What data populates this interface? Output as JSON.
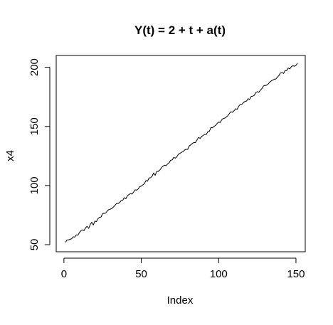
{
  "chart_data": {
    "type": "line",
    "title": "Y(t) = 2 + t + a(t)",
    "xlabel": "Index",
    "ylabel": "x4",
    "xlim": [
      -5,
      156
    ],
    "ylim": [
      44,
      210
    ],
    "x_ticks": [
      0,
      50,
      100,
      150
    ],
    "y_ticks": [
      50,
      100,
      150,
      200
    ],
    "x_tick_labels": [
      "0",
      "50",
      "100",
      "150"
    ],
    "y_tick_labels": [
      "50",
      "100",
      "150",
      "200"
    ],
    "grid": false,
    "legend": "none",
    "line_color": "#000000",
    "series": [
      {
        "x": [
          1,
          2,
          3,
          4,
          5,
          6,
          7,
          8,
          9,
          10,
          11,
          12,
          13,
          14,
          15,
          16,
          17,
          18,
          19,
          20,
          21,
          22,
          23,
          24,
          25,
          26,
          27,
          28,
          29,
          30,
          31,
          32,
          33,
          34,
          35,
          36,
          37,
          38,
          39,
          40,
          41,
          42,
          43,
          44,
          45,
          46,
          47,
          48,
          49,
          50,
          51,
          52,
          53,
          54,
          55,
          56,
          57,
          58,
          59,
          60,
          61,
          62,
          63,
          64,
          65,
          66,
          67,
          68,
          69,
          70,
          71,
          72,
          73,
          74,
          75,
          76,
          77,
          78,
          79,
          80,
          81,
          82,
          83,
          84,
          85,
          86,
          87,
          88,
          89,
          90,
          91,
          92,
          93,
          94,
          95,
          96,
          97,
          98,
          99,
          100,
          101,
          102,
          103,
          104,
          105,
          106,
          107,
          108,
          109,
          110,
          111,
          112,
          113,
          114,
          115,
          116,
          117,
          118,
          119,
          120,
          121,
          122,
          123,
          124,
          125,
          126,
          127,
          128,
          129,
          130,
          131,
          132,
          133,
          134,
          135,
          136,
          137,
          138,
          139,
          140,
          141,
          142,
          143,
          144,
          145,
          146,
          147,
          148,
          149,
          150,
          151
        ],
        "values": [
          52.0,
          54.0,
          54.0,
          54.6,
          55.0,
          56.6,
          56.4,
          58.3,
          58.0,
          60.2,
          61.8,
          62.5,
          61.9,
          64.3,
          65.5,
          63.7,
          67.0,
          69.0,
          66.6,
          69.9,
          69.5,
          72.0,
          73.1,
          73.4,
          76.3,
          76.5,
          76.7,
          78.5,
          79.6,
          80.0,
          80.6,
          81.9,
          83.3,
          84.8,
          84.8,
          85.6,
          87.3,
          87.5,
          89.8,
          88.8,
          91.2,
          92.4,
          93.2,
          92.8,
          94.5,
          96.4,
          96.1,
          97.1,
          99.1,
          99.5,
          100.6,
          101.5,
          104.3,
          103.6,
          106.4,
          106.6,
          107.9,
          110.6,
          108.6,
          112.0,
          112.0,
          113.1,
          115.0,
          116.3,
          117.2,
          116.8,
          118.2,
          119.3,
          121.4,
          121.7,
          123.8,
          123.2,
          124.4,
          126.5,
          127.2,
          128.1,
          128.8,
          130.0,
          130.6,
          130.6,
          133.5,
          134.4,
          135.6,
          136.4,
          136.3,
          138.6,
          140.7,
          139.9,
          141.4,
          142.4,
          143.3,
          143.1,
          145.5,
          145.8,
          149.0,
          148.8,
          150.0,
          150.8,
          152.4,
          153.7,
          153.3,
          155.6,
          156.8,
          157.0,
          158.0,
          159.1,
          161.0,
          162.4,
          161.9,
          163.3,
          164.9,
          164.5,
          167.1,
          168.6,
          168.7,
          170.0,
          171.2,
          171.4,
          173.4,
          172.8,
          175.3,
          175.6,
          176.2,
          178.6,
          179.4,
          178.9,
          180.7,
          182.0,
          184.2,
          184.5,
          184.9,
          185.8,
          187.4,
          188.5,
          189.2,
          189.9,
          190.1,
          191.6,
          193.1,
          195.3,
          195.5,
          194.8,
          197.3,
          197.2,
          199.4,
          198.6,
          200.5,
          201.3,
          200.9,
          201.6,
          203.6
        ]
      }
    ]
  }
}
